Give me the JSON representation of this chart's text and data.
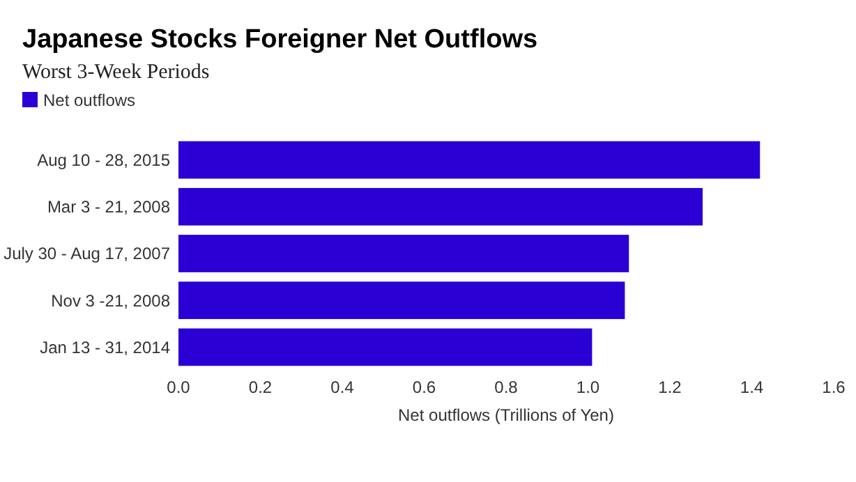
{
  "chart_data": {
    "type": "bar",
    "orientation": "horizontal",
    "title": "Japanese Stocks Foreigner Net Outflows",
    "subtitle": "Worst 3-Week Periods",
    "xlabel": "Net outflows (Trillions of Yen)",
    "categories": [
      "Aug 10 - 28, 2015",
      "Mar 3 - 21, 2008",
      "July 30 - Aug 17, 2007",
      "Nov 3 -21, 2008",
      "Jan 13 - 31, 2014"
    ],
    "series": [
      {
        "name": "Net outflows",
        "color": "#2a00d5",
        "values": [
          1.42,
          1.28,
          1.1,
          1.09,
          1.01
        ]
      }
    ],
    "xlim": [
      0,
      1.6
    ],
    "xticks": [
      {
        "value": 0,
        "label": "0.0"
      },
      {
        "value": 0.2,
        "label": "0.2"
      },
      {
        "value": 0.4,
        "label": "0.4"
      },
      {
        "value": 0.6,
        "label": "0.6"
      },
      {
        "value": 0.8,
        "label": "0.8"
      },
      {
        "value": 1,
        "label": "1.0"
      },
      {
        "value": 1.2,
        "label": "1.2"
      },
      {
        "value": 1.4,
        "label": "1.4"
      },
      {
        "value": 1.6,
        "label": "1.6"
      }
    ],
    "legend": "top left"
  }
}
